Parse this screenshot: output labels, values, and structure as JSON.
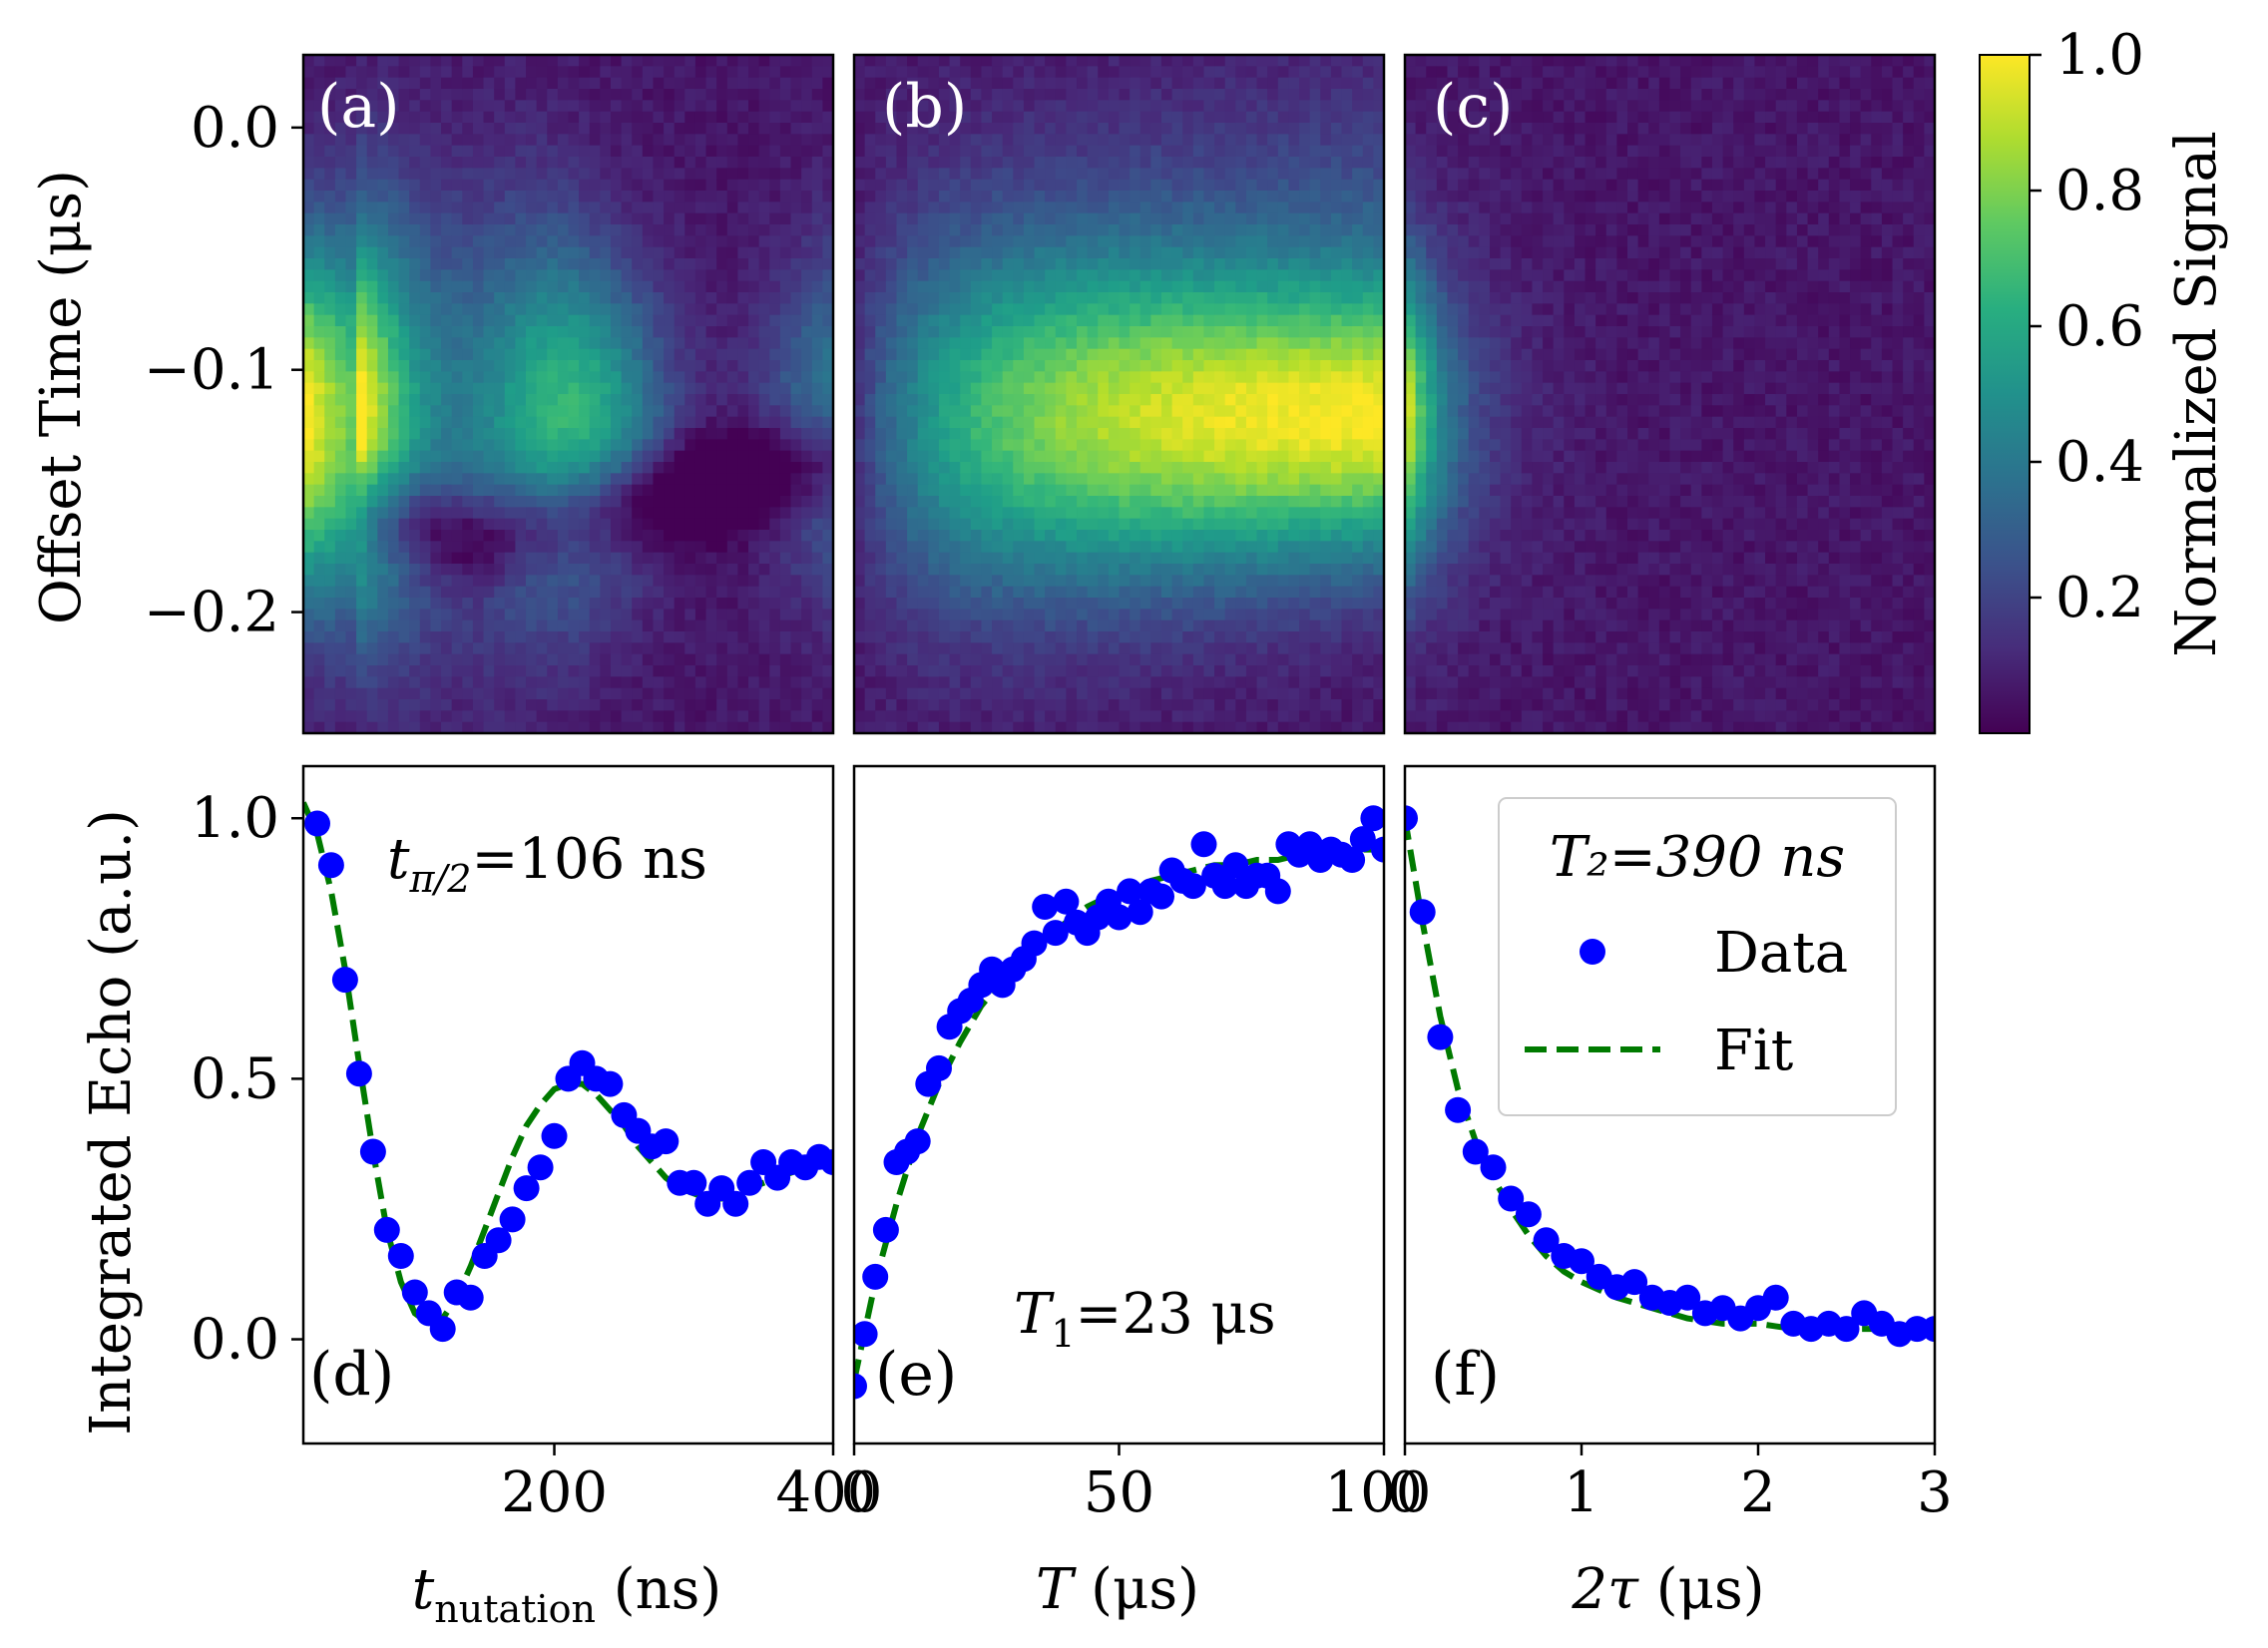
{
  "chart_data": {
    "type": "heatmap+scatter",
    "colors": {
      "data_marker": "#0000ff",
      "fit_line": "#007a00",
      "frame": "#000000",
      "heat_text": "#ffffff"
    },
    "heatmaps": {
      "y_range": [
        -0.25,
        0.03
      ],
      "ylabel": "Offset Time (μs)",
      "y_ticks": [
        0.0,
        -0.1,
        -0.2
      ],
      "y_tick_labels": [
        "0.0",
        "−0.1",
        "−0.2"
      ],
      "colorbar": {
        "label": "Normalized Signal",
        "range": [
          0.0,
          1.0
        ],
        "ticks": [
          0.2,
          0.4,
          0.6,
          0.8,
          1.0
        ],
        "tick_labels": [
          "0.2",
          "0.4",
          "0.6",
          "0.8",
          "1.0"
        ],
        "colormap": "viridis"
      },
      "panels": [
        {
          "label": "(a)",
          "kind": "nutation",
          "center_y": -0.12,
          "width_y": 0.045
        },
        {
          "label": "(b)",
          "kind": "t1",
          "center_y": -0.12,
          "width_y": 0.045
        },
        {
          "label": "(c)",
          "kind": "t2",
          "center_y": -0.12,
          "width_y": 0.04
        }
      ]
    },
    "lines": {
      "ylabel": "Integrated Echo (a.u.)",
      "ylim": [
        -0.2,
        1.1
      ],
      "y_ticks": [
        0.0,
        0.5,
        1.0
      ],
      "y_tick_labels": [
        "0.0",
        "0.5",
        "1.0"
      ],
      "legend": {
        "title": "T₂=390 ns",
        "data_label": "Data",
        "fit_label": "Fit",
        "placement": "top-right"
      },
      "panels": [
        {
          "label": "(d)",
          "annotation": {
            "main": "t",
            "sub": "π/2",
            "rest": "=106 ns"
          },
          "xlabel": {
            "main": "t",
            "sub": "nutation",
            "rest": " (ns)"
          },
          "xlim": [
            20,
            400
          ],
          "x_ticks": [
            200,
            400
          ],
          "x_tick_labels": [
            "200",
            "400"
          ],
          "x": [
            30,
            40,
            50,
            60,
            70,
            80,
            90,
            100,
            110,
            120,
            130,
            140,
            150,
            160,
            170,
            180,
            190,
            200,
            210,
            220,
            230,
            240,
            250,
            260,
            270,
            280,
            290,
            300,
            310,
            320,
            330,
            340,
            350,
            360,
            370,
            380,
            390,
            400
          ],
          "y": [
            0.99,
            0.91,
            0.69,
            0.51,
            0.36,
            0.21,
            0.16,
            0.09,
            0.05,
            0.02,
            0.09,
            0.08,
            0.16,
            0.19,
            0.23,
            0.29,
            0.33,
            0.39,
            0.5,
            0.53,
            0.5,
            0.49,
            0.43,
            0.4,
            0.37,
            0.38,
            0.3,
            0.3,
            0.26,
            0.29,
            0.26,
            0.3,
            0.34,
            0.31,
            0.34,
            0.33,
            0.35,
            0.34
          ],
          "fit_x": [
            20,
            30,
            40,
            50,
            60,
            70,
            80,
            90,
            100,
            110,
            120,
            130,
            140,
            150,
            160,
            170,
            180,
            190,
            200,
            210,
            220,
            230,
            240,
            250,
            260,
            270,
            280,
            290,
            300,
            310,
            320,
            330,
            340,
            350,
            360,
            370,
            380,
            390,
            400
          ],
          "fit_y": [
            1.03,
            0.97,
            0.86,
            0.71,
            0.53,
            0.36,
            0.21,
            0.11,
            0.05,
            0.03,
            0.04,
            0.08,
            0.14,
            0.21,
            0.28,
            0.35,
            0.41,
            0.45,
            0.48,
            0.49,
            0.49,
            0.47,
            0.44,
            0.41,
            0.37,
            0.34,
            0.31,
            0.29,
            0.28,
            0.27,
            0.27,
            0.28,
            0.29,
            0.3,
            0.31,
            0.32,
            0.33,
            0.34,
            0.35
          ]
        },
        {
          "label": "(e)",
          "annotation": {
            "main": "T",
            "sub": "1",
            "rest": "=23 μs"
          },
          "xlabel": {
            "main": "T",
            "sub": "",
            "rest": " (μs)"
          },
          "xlim": [
            0,
            100
          ],
          "x_ticks": [
            0,
            50,
            100
          ],
          "x_tick_labels": [
            "0",
            "50",
            "100"
          ],
          "x": [
            0,
            2,
            4,
            6,
            8,
            10,
            12,
            14,
            16,
            18,
            20,
            22,
            24,
            26,
            28,
            30,
            32,
            34,
            36,
            38,
            40,
            42,
            44,
            46,
            48,
            50,
            52,
            54,
            56,
            58,
            60,
            62,
            64,
            66,
            68,
            70,
            72,
            74,
            76,
            78,
            80,
            82,
            84,
            86,
            88,
            90,
            92,
            94,
            96,
            98,
            100
          ],
          "y": [
            -0.09,
            0.01,
            0.12,
            0.21,
            0.34,
            0.36,
            0.38,
            0.49,
            0.52,
            0.6,
            0.63,
            0.65,
            0.68,
            0.71,
            0.68,
            0.71,
            0.73,
            0.76,
            0.83,
            0.78,
            0.84,
            0.8,
            0.78,
            0.81,
            0.84,
            0.81,
            0.86,
            0.82,
            0.86,
            0.85,
            0.9,
            0.88,
            0.87,
            0.95,
            0.89,
            0.87,
            0.91,
            0.87,
            0.89,
            0.89,
            0.86,
            0.95,
            0.93,
            0.95,
            0.92,
            0.94,
            0.93,
            0.92,
            0.96,
            1.0,
            0.94
          ],
          "fit_x": [
            0,
            4,
            8,
            12,
            16,
            20,
            24,
            28,
            32,
            36,
            40,
            44,
            48,
            52,
            56,
            60,
            64,
            68,
            72,
            76,
            80,
            84,
            88,
            92,
            96,
            100
          ],
          "fit_y": [
            -0.08,
            0.11,
            0.26,
            0.39,
            0.49,
            0.57,
            0.64,
            0.69,
            0.74,
            0.77,
            0.8,
            0.83,
            0.85,
            0.86,
            0.88,
            0.89,
            0.9,
            0.91,
            0.91,
            0.92,
            0.92,
            0.93,
            0.93,
            0.93,
            0.94,
            0.94
          ]
        },
        {
          "label": "(f)",
          "annotation": null,
          "xlabel": {
            "main": "2τ",
            "sub": "",
            "rest": " (μs)"
          },
          "xlim": [
            0.0,
            3.0
          ],
          "x_ticks": [
            0,
            1,
            2,
            3
          ],
          "x_tick_labels": [
            "0",
            "1",
            "2",
            "3"
          ],
          "x": [
            0.0,
            0.1,
            0.2,
            0.3,
            0.4,
            0.5,
            0.6,
            0.7,
            0.8,
            0.9,
            1.0,
            1.1,
            1.2,
            1.3,
            1.4,
            1.5,
            1.6,
            1.7,
            1.8,
            1.9,
            2.0,
            2.1,
            2.2,
            2.3,
            2.4,
            2.5,
            2.6,
            2.7,
            2.8,
            2.9,
            3.0
          ],
          "y": [
            1.0,
            0.82,
            0.58,
            0.44,
            0.36,
            0.33,
            0.27,
            0.24,
            0.19,
            0.16,
            0.15,
            0.12,
            0.1,
            0.11,
            0.08,
            0.07,
            0.08,
            0.05,
            0.06,
            0.04,
            0.06,
            0.08,
            0.03,
            0.02,
            0.03,
            0.02,
            0.05,
            0.03,
            0.01,
            0.02,
            0.02
          ],
          "fit_x": [
            0.0,
            0.1,
            0.2,
            0.3,
            0.4,
            0.5,
            0.6,
            0.7,
            0.8,
            0.9,
            1.0,
            1.2,
            1.4,
            1.6,
            1.8,
            2.0,
            2.2,
            2.4,
            2.6,
            2.8,
            3.0
          ],
          "fit_y": [
            1.0,
            0.8,
            0.62,
            0.48,
            0.38,
            0.31,
            0.25,
            0.2,
            0.16,
            0.13,
            0.11,
            0.08,
            0.06,
            0.04,
            0.03,
            0.03,
            0.02,
            0.02,
            0.02,
            0.02,
            0.02
          ]
        }
      ]
    }
  }
}
